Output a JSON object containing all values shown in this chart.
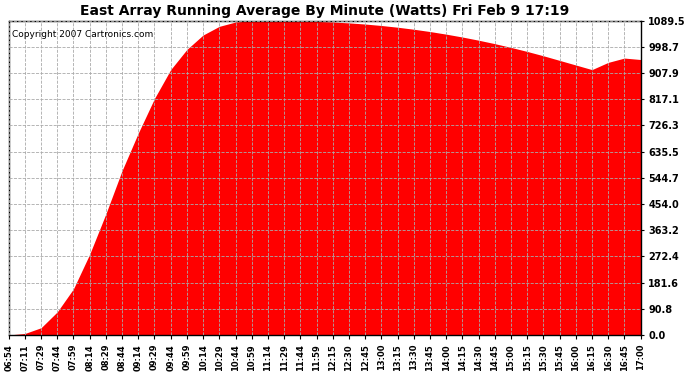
{
  "title": "East Array Running Average By Minute (Watts) Fri Feb 9 17:19",
  "copyright": "Copyright 2007 Cartronics.com",
  "fill_color": "#FF0000",
  "background_color": "#FFFFFF",
  "grid_color": "#AAAAAA",
  "yticks": [
    0.0,
    90.8,
    181.6,
    272.4,
    363.2,
    454.0,
    544.7,
    635.5,
    726.3,
    817.1,
    907.9,
    998.7,
    1089.5
  ],
  "ymax": 1089.5,
  "ymin": 0.0,
  "xtick_labels": [
    "06:54",
    "07:11",
    "07:29",
    "07:44",
    "07:59",
    "08:14",
    "08:29",
    "08:44",
    "09:14",
    "09:29",
    "09:44",
    "09:59",
    "10:14",
    "10:29",
    "10:44",
    "10:59",
    "11:14",
    "11:29",
    "11:44",
    "11:59",
    "12:15",
    "12:30",
    "12:45",
    "13:00",
    "13:15",
    "13:30",
    "13:45",
    "14:00",
    "14:15",
    "14:30",
    "14:45",
    "15:00",
    "15:15",
    "15:30",
    "15:45",
    "16:00",
    "16:15",
    "16:30",
    "16:45",
    "17:00"
  ],
  "curve_y_vals": [
    0.0,
    5.0,
    25.0,
    80.0,
    160.0,
    280.0,
    420.0,
    570.0,
    700.0,
    820.0,
    920.0,
    990.0,
    1040.0,
    1070.0,
    1085.0,
    1089.5,
    1089.5,
    1089.0,
    1088.0,
    1087.0,
    1085.0,
    1082.0,
    1078.0,
    1073.0,
    1067.0,
    1060.0,
    1052.0,
    1043.0,
    1033.0,
    1022.0,
    1010.0,
    997.0,
    983.0,
    968.0,
    952.0,
    936.0,
    920.0,
    945.0,
    960.0,
    955.0
  ]
}
